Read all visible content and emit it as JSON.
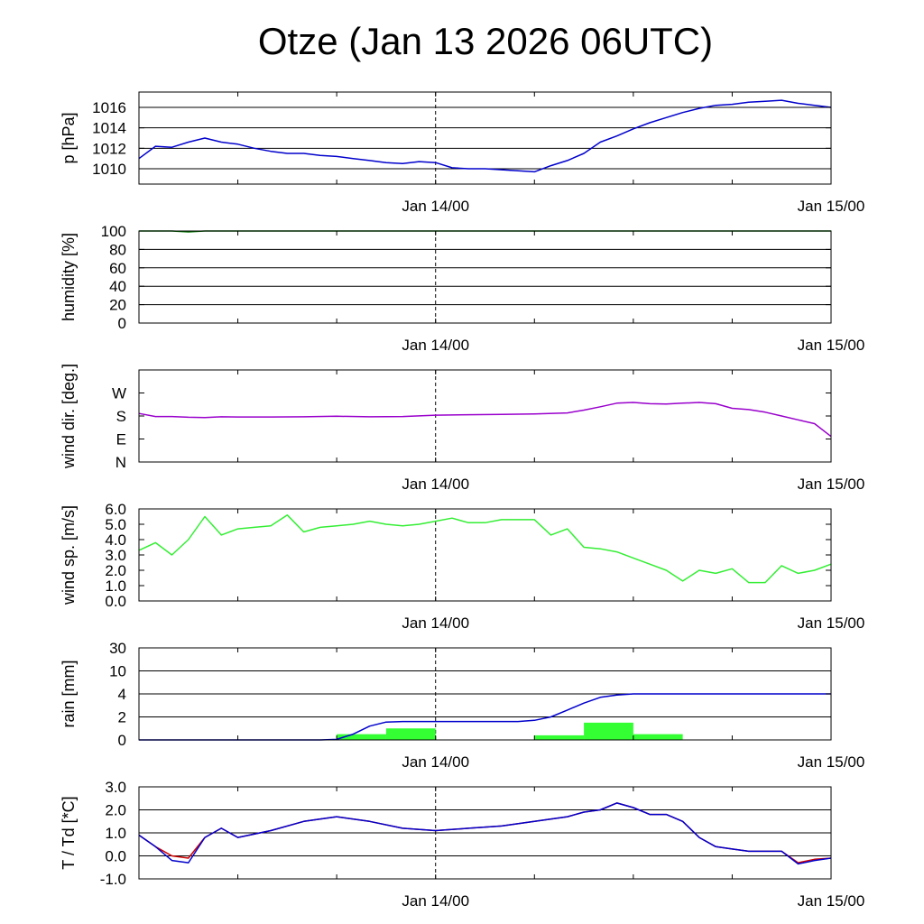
{
  "page": {
    "title": "Otze (Jan 13 2026 06UTC)"
  },
  "colors": {
    "pressure": "#0000cc",
    "humidity": "#007700",
    "wind_dir": "#9900cc",
    "wind_speed": "#33ee33",
    "rain_bar": "#33ff33",
    "rain_cum": "#0000cc",
    "temperature": "#cc0000",
    "dewpoint": "#0000cc"
  },
  "chart_data": [
    {
      "type": "line",
      "ylabel": "p [hPa]",
      "xrange": [
        "Jan 13 06:00",
        "Jan 15 00:00"
      ],
      "xticks": [
        {
          "time": "Jan 14 00:00",
          "label": "Jan 14/00"
        },
        {
          "time": "Jan 15 00:00",
          "label": "Jan 15/00"
        }
      ],
      "ylim": [
        1008.5,
        1017.5
      ],
      "yticks": [
        {
          "v": 1010,
          "label": "1010"
        },
        {
          "v": 1012,
          "label": "1012"
        },
        {
          "v": 1014,
          "label": "1014"
        },
        {
          "v": 1016,
          "label": "1016"
        }
      ],
      "grid": true,
      "series": [
        {
          "color": "#0000cc",
          "x": [
            "Jan 13 06:00",
            "Jan 13 07:00",
            "Jan 13 08:00",
            "Jan 13 09:00",
            "Jan 13 10:00",
            "Jan 13 11:00",
            "Jan 13 12:00",
            "Jan 13 13:00",
            "Jan 13 14:00",
            "Jan 13 15:00",
            "Jan 13 16:00",
            "Jan 13 17:00",
            "Jan 13 18:00",
            "Jan 13 19:00",
            "Jan 13 20:00",
            "Jan 13 21:00",
            "Jan 13 22:00",
            "Jan 13 23:00",
            "Jan 14 00:00",
            "Jan 14 01:00",
            "Jan 14 02:00",
            "Jan 14 03:00",
            "Jan 14 04:00",
            "Jan 14 05:00",
            "Jan 14 06:00",
            "Jan 14 07:00",
            "Jan 14 08:00",
            "Jan 14 09:00",
            "Jan 14 10:00",
            "Jan 14 11:00",
            "Jan 14 12:00",
            "Jan 14 13:00",
            "Jan 14 14:00",
            "Jan 14 15:00",
            "Jan 14 16:00",
            "Jan 14 17:00",
            "Jan 14 18:00",
            "Jan 14 19:00",
            "Jan 14 20:00",
            "Jan 14 21:00",
            "Jan 14 22:00",
            "Jan 14 23:00",
            "Jan 15 00:00"
          ],
          "y": [
            1011.0,
            1012.2,
            1012.1,
            1012.6,
            1013.0,
            1012.6,
            1012.4,
            1012.0,
            1011.7,
            1011.5,
            1011.5,
            1011.3,
            1011.2,
            1011.0,
            1010.8,
            1010.6,
            1010.5,
            1010.7,
            1010.6,
            1010.1,
            1010.0,
            1010.0,
            1009.9,
            1009.8,
            1009.7,
            1010.3,
            1010.8,
            1011.5,
            1012.6,
            1013.2,
            1013.9,
            1014.5,
            1015.0,
            1015.5,
            1015.9,
            1016.2,
            1016.3,
            1016.5,
            1016.6,
            1016.7,
            1016.4,
            1016.2,
            1016.0
          ]
        }
      ]
    },
    {
      "type": "line",
      "ylabel": "humidity [%]",
      "xrange": [
        "Jan 13 06:00",
        "Jan 15 00:00"
      ],
      "xticks": [
        {
          "time": "Jan 14 00:00",
          "label": "Jan 14/00"
        },
        {
          "time": "Jan 15 00:00",
          "label": "Jan 15/00"
        }
      ],
      "ylim": [
        0,
        100
      ],
      "yticks": [
        {
          "v": 0,
          "label": "0"
        },
        {
          "v": 20,
          "label": "20"
        },
        {
          "v": 40,
          "label": "40"
        },
        {
          "v": 60,
          "label": "60"
        },
        {
          "v": 80,
          "label": "80"
        },
        {
          "v": 100,
          "label": "100"
        }
      ],
      "grid": true,
      "series": [
        {
          "color": "#007700",
          "x": [
            "Jan 13 06:00",
            "Jan 13 08:00",
            "Jan 13 09:00",
            "Jan 13 10:00",
            "Jan 13 12:00",
            "Jan 14 00:00",
            "Jan 15 00:00"
          ],
          "y": [
            100,
            100,
            99,
            100,
            100,
            100,
            100
          ]
        }
      ]
    },
    {
      "type": "line",
      "ylabel": "wind dir. [deg.]",
      "xrange": [
        "Jan 13 06:00",
        "Jan 15 00:00"
      ],
      "xticks": [
        {
          "time": "Jan 14 00:00",
          "label": "Jan 14/00"
        },
        {
          "time": "Jan 15 00:00",
          "label": "Jan 15/00"
        }
      ],
      "ylim": [
        0,
        360
      ],
      "yticks": [
        {
          "v": 0,
          "label": "N"
        },
        {
          "v": 90,
          "label": "E"
        },
        {
          "v": 180,
          "label": "S"
        },
        {
          "v": 270,
          "label": "W"
        }
      ],
      "grid": false,
      "series": [
        {
          "color": "#9900cc",
          "x": [
            "Jan 13 06:00",
            "Jan 13 07:00",
            "Jan 13 08:00",
            "Jan 13 09:00",
            "Jan 13 10:00",
            "Jan 13 11:00",
            "Jan 13 12:00",
            "Jan 13 14:00",
            "Jan 13 16:00",
            "Jan 13 18:00",
            "Jan 13 20:00",
            "Jan 13 22:00",
            "Jan 14 00:00",
            "Jan 14 02:00",
            "Jan 14 04:00",
            "Jan 14 06:00",
            "Jan 14 08:00",
            "Jan 14 09:00",
            "Jan 14 10:00",
            "Jan 14 11:00",
            "Jan 14 12:00",
            "Jan 14 13:00",
            "Jan 14 14:00",
            "Jan 14 15:00",
            "Jan 14 16:00",
            "Jan 14 17:00",
            "Jan 14 18:00",
            "Jan 14 19:00",
            "Jan 14 20:00",
            "Jan 14 21:00",
            "Jan 14 22:00",
            "Jan 14 23:00",
            "Jan 15 00:00"
          ],
          "y": [
            190,
            178,
            178,
            175,
            174,
            177,
            176,
            176,
            177,
            179,
            177,
            178,
            183,
            185,
            186,
            188,
            192,
            203,
            216,
            230,
            233,
            228,
            227,
            230,
            233,
            228,
            210,
            205,
            195,
            180,
            165,
            150,
            100
          ]
        }
      ]
    },
    {
      "type": "line",
      "ylabel": "wind sp. [m/s]",
      "xrange": [
        "Jan 13 06:00",
        "Jan 15 00:00"
      ],
      "xticks": [
        {
          "time": "Jan 14 00:00",
          "label": "Jan 14/00"
        },
        {
          "time": "Jan 15 00:00",
          "label": "Jan 15/00"
        }
      ],
      "ylim": [
        0,
        6
      ],
      "yticks": [
        {
          "v": 0,
          "label": "0.0"
        },
        {
          "v": 1,
          "label": "1.0"
        },
        {
          "v": 2,
          "label": "2.0"
        },
        {
          "v": 3,
          "label": "3.0"
        },
        {
          "v": 4,
          "label": "4.0"
        },
        {
          "v": 5,
          "label": "5.0"
        },
        {
          "v": 6,
          "label": "6.0"
        }
      ],
      "grid": false,
      "series": [
        {
          "color": "#33ee33",
          "x": [
            "Jan 13 06:00",
            "Jan 13 07:00",
            "Jan 13 08:00",
            "Jan 13 09:00",
            "Jan 13 10:00",
            "Jan 13 11:00",
            "Jan 13 12:00",
            "Jan 13 13:00",
            "Jan 13 14:00",
            "Jan 13 15:00",
            "Jan 13 16:00",
            "Jan 13 17:00",
            "Jan 13 18:00",
            "Jan 13 19:00",
            "Jan 13 20:00",
            "Jan 13 21:00",
            "Jan 13 22:00",
            "Jan 13 23:00",
            "Jan 14 00:00",
            "Jan 14 01:00",
            "Jan 14 02:00",
            "Jan 14 03:00",
            "Jan 14 04:00",
            "Jan 14 05:00",
            "Jan 14 06:00",
            "Jan 14 07:00",
            "Jan 14 08:00",
            "Jan 14 09:00",
            "Jan 14 10:00",
            "Jan 14 11:00",
            "Jan 14 12:00",
            "Jan 14 13:00",
            "Jan 14 14:00",
            "Jan 14 15:00",
            "Jan 14 16:00",
            "Jan 14 17:00",
            "Jan 14 18:00",
            "Jan 14 19:00",
            "Jan 14 20:00",
            "Jan 14 21:00",
            "Jan 14 22:00",
            "Jan 14 23:00",
            "Jan 15 00:00"
          ],
          "y": [
            3.3,
            3.8,
            3.0,
            4.0,
            5.5,
            4.3,
            4.7,
            4.8,
            4.9,
            5.6,
            4.5,
            4.8,
            4.9,
            5.0,
            5.2,
            5.0,
            4.9,
            5.0,
            5.2,
            5.4,
            5.1,
            5.1,
            5.3,
            5.3,
            5.3,
            4.3,
            4.7,
            3.5,
            3.4,
            3.2,
            2.8,
            2.4,
            2.0,
            1.3,
            2.0,
            1.8,
            2.1,
            1.2,
            1.2,
            2.3,
            1.8,
            2.0,
            2.4
          ]
        }
      ]
    },
    {
      "type": "bar+line",
      "ylabel": "rain [mm]",
      "xrange": [
        "Jan 13 06:00",
        "Jan 15 00:00"
      ],
      "xticks": [
        {
          "time": "Jan 14 00:00",
          "label": "Jan 14/00"
        },
        {
          "time": "Jan 15 00:00",
          "label": "Jan 15/00"
        }
      ],
      "ylim": [
        0,
        30
      ],
      "yscale": "nonlinear",
      "yticks": [
        {
          "v": 0,
          "label": "0"
        },
        {
          "v": 2,
          "label": "2"
        },
        {
          "v": 4,
          "label": "4"
        },
        {
          "v": 10,
          "label": "10"
        },
        {
          "v": 30,
          "label": "30"
        }
      ],
      "grid": true,
      "bars": [
        {
          "start": "Jan 13 18:00",
          "end": "Jan 13 21:00",
          "value": 0.5
        },
        {
          "start": "Jan 13 21:00",
          "end": "Jan 14 00:00",
          "value": 1.0
        },
        {
          "start": "Jan 14 06:00",
          "end": "Jan 14 09:00",
          "value": 0.4
        },
        {
          "start": "Jan 14 09:00",
          "end": "Jan 14 12:00",
          "value": 1.5
        },
        {
          "start": "Jan 14 12:00",
          "end": "Jan 14 15:00",
          "value": 0.5
        }
      ],
      "series": [
        {
          "color": "#0000cc",
          "x": [
            "Jan 13 06:00",
            "Jan 13 17:00",
            "Jan 13 18:00",
            "Jan 13 19:00",
            "Jan 13 20:00",
            "Jan 13 21:00",
            "Jan 13 22:00",
            "Jan 13 23:00",
            "Jan 14 00:00",
            "Jan 14 02:00",
            "Jan 14 04:00",
            "Jan 14 05:00",
            "Jan 14 06:00",
            "Jan 14 07:00",
            "Jan 14 08:00",
            "Jan 14 09:00",
            "Jan 14 10:00",
            "Jan 14 11:00",
            "Jan 14 12:00",
            "Jan 14 14:00",
            "Jan 15 00:00"
          ],
          "y": [
            0,
            0,
            0.05,
            0.5,
            1.2,
            1.55,
            1.6,
            1.6,
            1.6,
            1.6,
            1.6,
            1.6,
            1.7,
            2.0,
            2.6,
            3.2,
            3.7,
            3.9,
            4.0,
            4.0,
            4.0
          ]
        }
      ]
    },
    {
      "type": "line",
      "ylabel": "T / Td [*C]",
      "xrange": [
        "Jan 13 06:00",
        "Jan 15 00:00"
      ],
      "xticks": [
        {
          "time": "Jan 14 00:00",
          "label": "Jan 14/00"
        },
        {
          "time": "Jan 15 00:00",
          "label": "Jan 15/00"
        }
      ],
      "ylim": [
        -1,
        3
      ],
      "yticks": [
        {
          "v": -1,
          "label": "-1.0"
        },
        {
          "v": 0,
          "label": "0.0"
        },
        {
          "v": 1,
          "label": "1.0"
        },
        {
          "v": 2,
          "label": "2.0"
        },
        {
          "v": 3,
          "label": "3.0"
        }
      ],
      "grid": true,
      "series": [
        {
          "color": "#cc0000",
          "x": [
            "Jan 13 06:00",
            "Jan 13 07:00",
            "Jan 13 08:00",
            "Jan 13 09:00",
            "Jan 13 10:00",
            "Jan 13 11:00",
            "Jan 13 12:00",
            "Jan 13 14:00",
            "Jan 13 16:00",
            "Jan 13 18:00",
            "Jan 13 20:00",
            "Jan 13 22:00",
            "Jan 14 00:00",
            "Jan 14 02:00",
            "Jan 14 04:00",
            "Jan 14 06:00",
            "Jan 14 08:00",
            "Jan 14 09:00",
            "Jan 14 10:00",
            "Jan 14 11:00",
            "Jan 14 12:00",
            "Jan 14 13:00",
            "Jan 14 14:00",
            "Jan 14 15:00",
            "Jan 14 16:00",
            "Jan 14 17:00",
            "Jan 14 18:00",
            "Jan 14 19:00",
            "Jan 14 20:00",
            "Jan 14 21:00",
            "Jan 14 22:00",
            "Jan 14 23:00",
            "Jan 15 00:00"
          ],
          "y": [
            0.9,
            0.4,
            0.0,
            -0.1,
            0.8,
            1.2,
            0.8,
            1.1,
            1.5,
            1.7,
            1.5,
            1.2,
            1.1,
            1.2,
            1.3,
            1.5,
            1.7,
            1.9,
            2.0,
            2.3,
            2.1,
            1.8,
            1.8,
            1.5,
            0.8,
            0.4,
            0.3,
            0.2,
            0.2,
            0.2,
            -0.3,
            -0.15,
            -0.1
          ]
        },
        {
          "color": "#0000cc",
          "x": [
            "Jan 13 06:00",
            "Jan 13 07:00",
            "Jan 13 08:00",
            "Jan 13 09:00",
            "Jan 13 10:00",
            "Jan 13 11:00",
            "Jan 13 12:00",
            "Jan 13 14:00",
            "Jan 13 16:00",
            "Jan 13 18:00",
            "Jan 13 20:00",
            "Jan 13 22:00",
            "Jan 14 00:00",
            "Jan 14 02:00",
            "Jan 14 04:00",
            "Jan 14 06:00",
            "Jan 14 08:00",
            "Jan 14 09:00",
            "Jan 14 10:00",
            "Jan 14 11:00",
            "Jan 14 12:00",
            "Jan 14 13:00",
            "Jan 14 14:00",
            "Jan 14 15:00",
            "Jan 14 16:00",
            "Jan 14 17:00",
            "Jan 14 18:00",
            "Jan 14 19:00",
            "Jan 14 20:00",
            "Jan 14 21:00",
            "Jan 14 22:00",
            "Jan 14 23:00",
            "Jan 15 00:00"
          ],
          "y": [
            0.9,
            0.4,
            -0.2,
            -0.3,
            0.8,
            1.2,
            0.8,
            1.1,
            1.5,
            1.7,
            1.5,
            1.2,
            1.1,
            1.2,
            1.3,
            1.5,
            1.7,
            1.9,
            2.0,
            2.3,
            2.1,
            1.8,
            1.8,
            1.5,
            0.8,
            0.4,
            0.3,
            0.2,
            0.2,
            0.2,
            -0.35,
            -0.2,
            -0.1
          ]
        }
      ]
    }
  ]
}
